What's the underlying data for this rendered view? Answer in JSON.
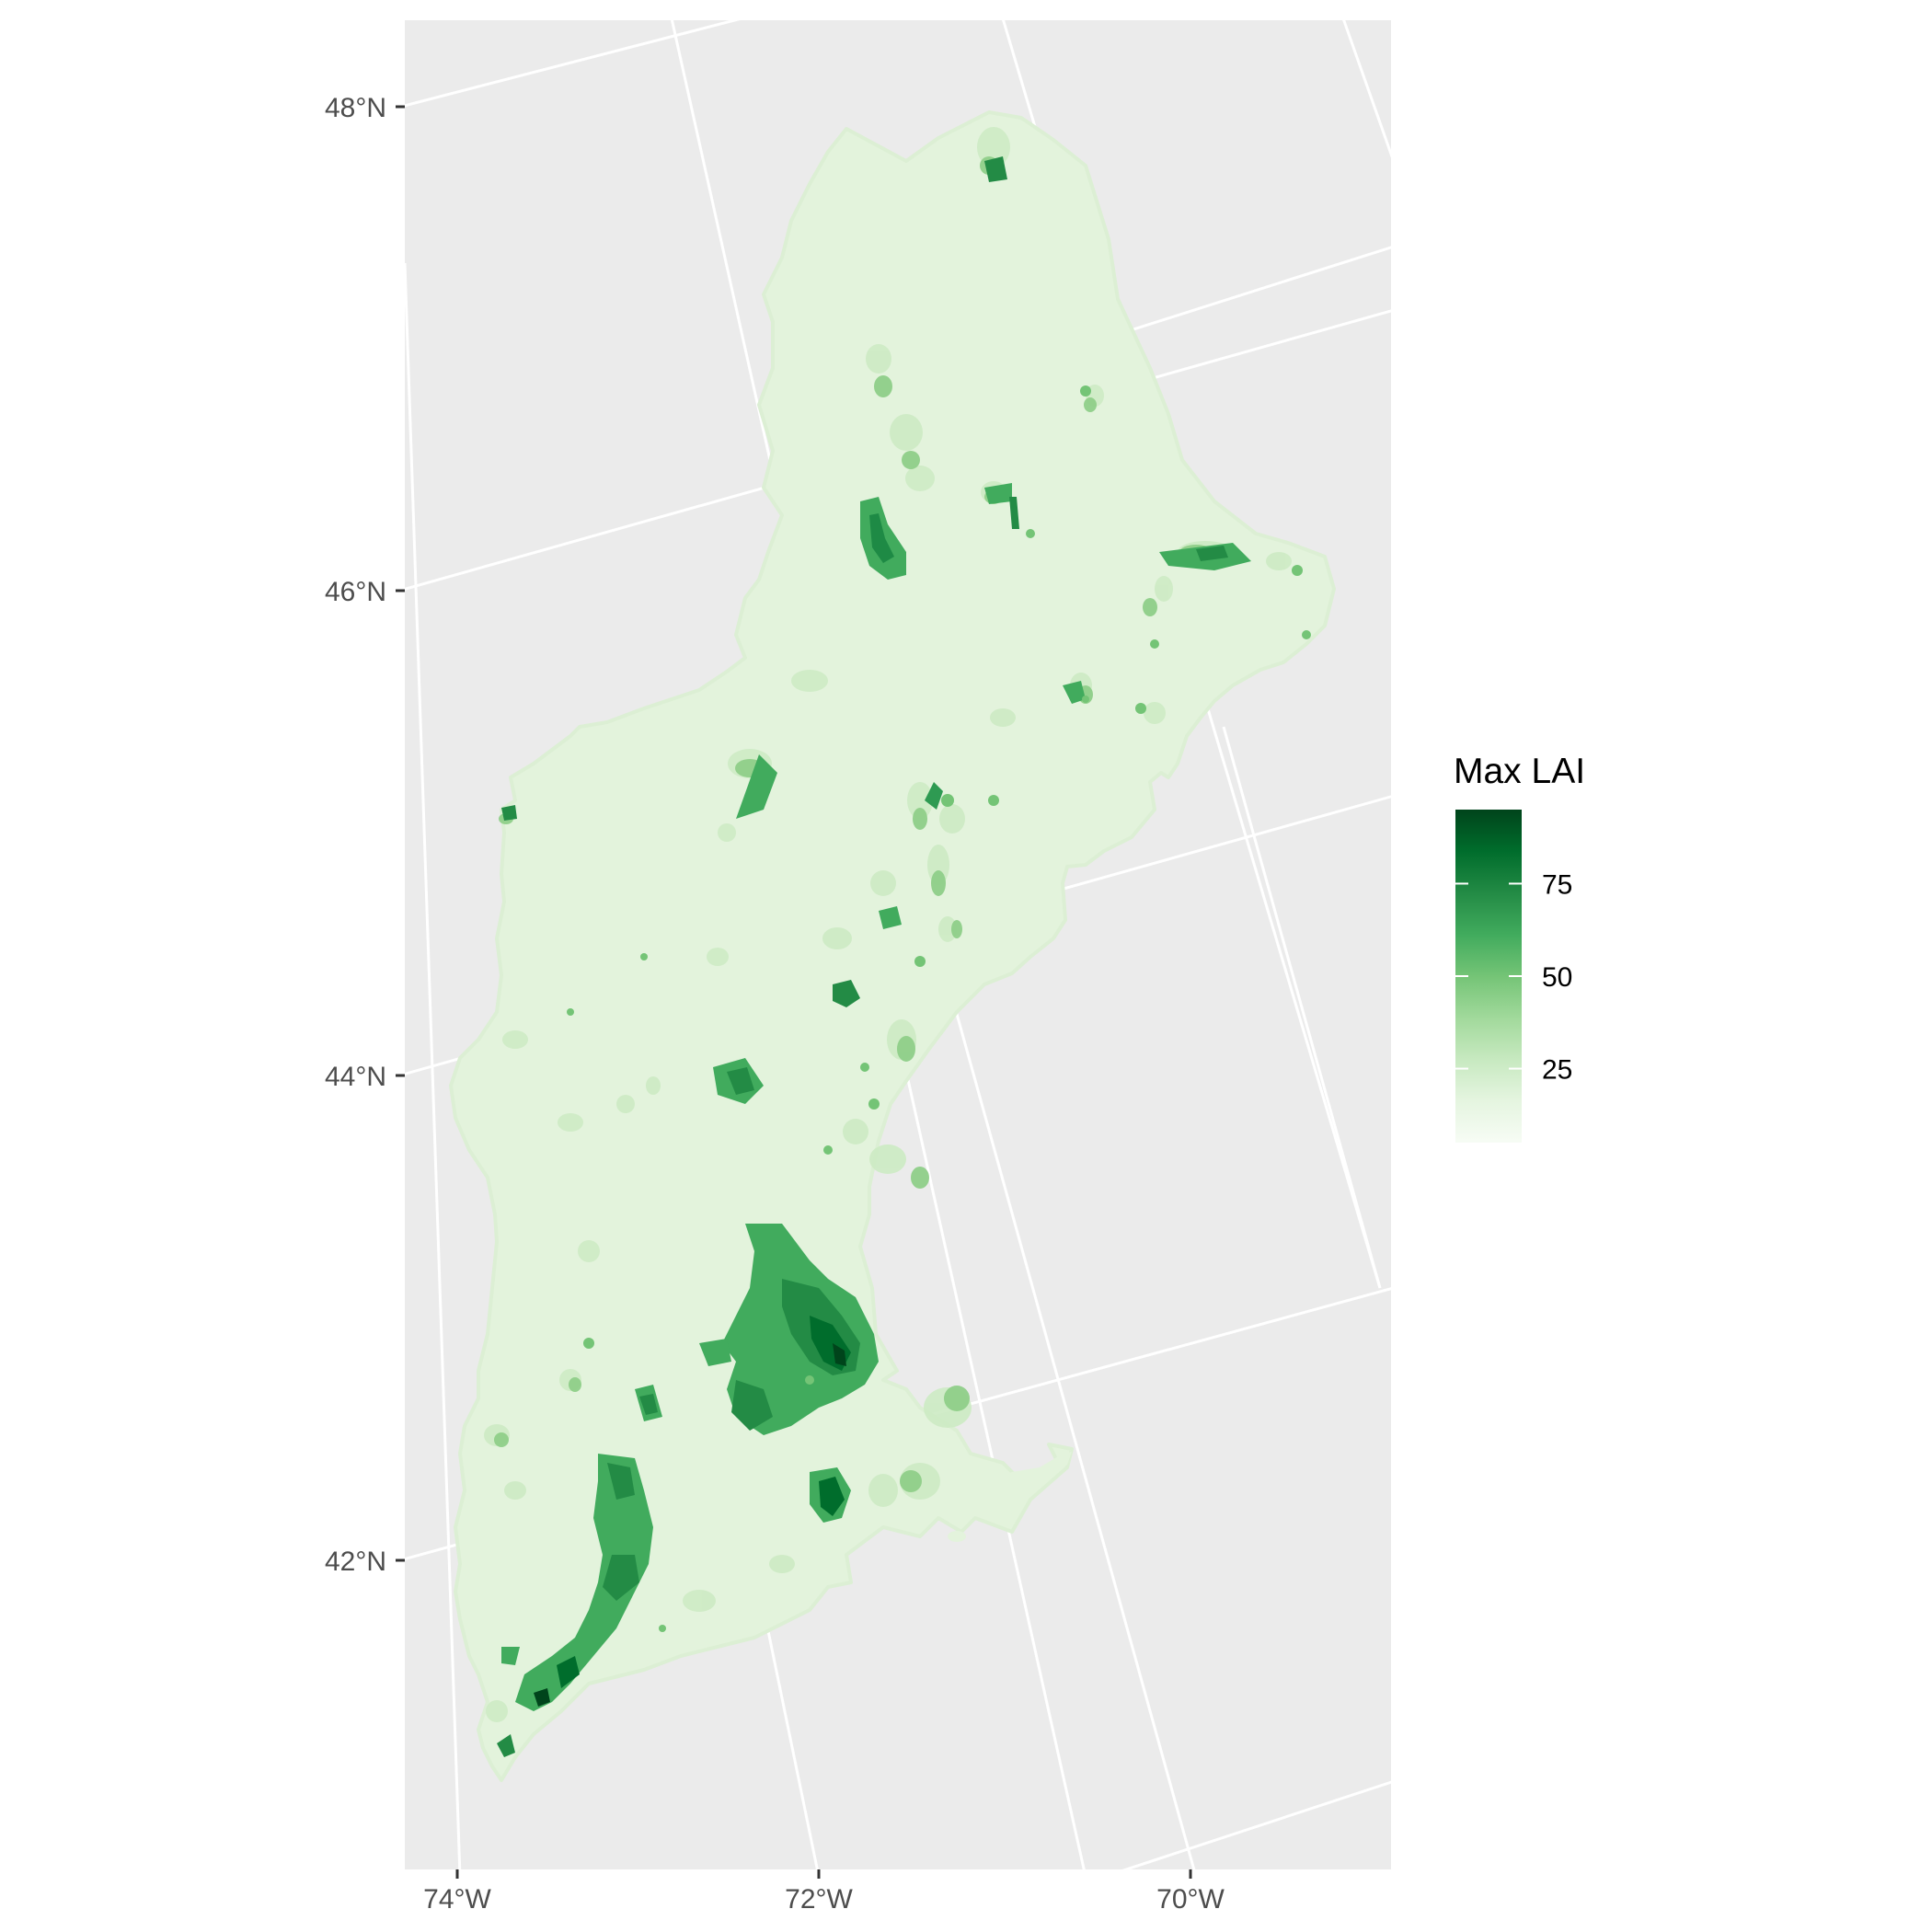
{
  "map": {
    "lat_labels": [
      "48°N",
      "46°N",
      "44°N",
      "42°N"
    ],
    "lon_labels": [
      "74°W",
      "72°W",
      "70°W"
    ],
    "colors": {
      "panel": "#ebebeb",
      "grid": "#ffffff",
      "fill_low": "#f1faee",
      "fill_light": "#ddf0d6",
      "fill_mid": "#a1d99b",
      "fill_high": "#41ab5d",
      "fill_max": "#00441b"
    }
  },
  "legend": {
    "title": "Max LAI",
    "breaks": [
      {
        "label": "75",
        "value": 75
      },
      {
        "label": "50",
        "value": 50
      },
      {
        "label": "25",
        "value": 25
      }
    ],
    "min": 5,
    "max": 95,
    "colors": [
      "#f7fcf5",
      "#e5f5e0",
      "#c7e9c0",
      "#a1d99b",
      "#74c476",
      "#41ab5d",
      "#238b45",
      "#006d2c",
      "#00441b"
    ]
  }
}
